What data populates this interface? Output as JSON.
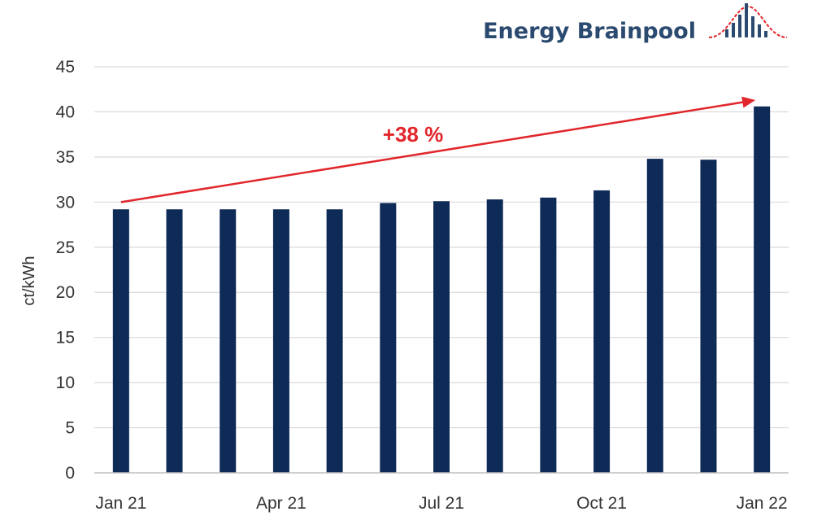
{
  "brand": {
    "name": "Energy Brainpool"
  },
  "colors": {
    "bar": "#0e2a57",
    "arrow": "#e1262c",
    "grid": "#d9d9d9",
    "brand": "#2b4a6f"
  },
  "chart_data": {
    "type": "bar",
    "title": "",
    "xlabel": "",
    "ylabel": "ct/kWh",
    "ylim": [
      0,
      45
    ],
    "yticks": [
      0,
      5,
      10,
      15,
      20,
      25,
      30,
      35,
      40,
      45
    ],
    "grid": true,
    "categories": [
      "Jan 21",
      "Feb 21",
      "Mar 21",
      "Apr 21",
      "May 21",
      "Jun 21",
      "Jul 21",
      "Aug 21",
      "Sep 21",
      "Oct 21",
      "Nov 21",
      "Dec 21",
      "Jan 22"
    ],
    "tick_labels": [
      "Jan 21",
      "",
      "",
      "Apr 21",
      "",
      "",
      "Jul 21",
      "",
      "",
      "Oct 21",
      "",
      "",
      "Jan 22"
    ],
    "values": [
      29.2,
      29.2,
      29.2,
      29.2,
      29.2,
      29.9,
      30.1,
      30.3,
      30.5,
      31.3,
      34.8,
      34.7,
      40.6
    ],
    "annotation": {
      "text": "+38 %",
      "from_category": "Jan 21",
      "from_value": 30.0,
      "to_category": "Jan 22",
      "to_value": 41.3
    }
  }
}
